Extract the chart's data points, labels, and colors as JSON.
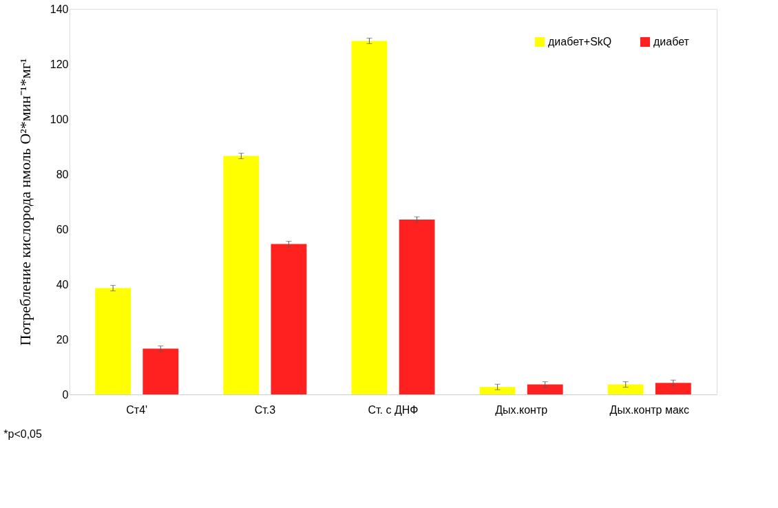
{
  "chart_data": {
    "type": "bar",
    "ylabel": "Потребление кислорода нмоль O²*мин⁻¹*мг¹",
    "categories": [
      "Ст4'",
      "Ст.3",
      "Ст. с ДНФ",
      "Дых.контр",
      "Дых.контр макс"
    ],
    "series": [
      {
        "name": "диабет+SkQ",
        "color": "#ffff00",
        "values": [
          38.6,
          86.6,
          128.4,
          2.7,
          3.6
        ],
        "errors": [
          1,
          1,
          1,
          1,
          1
        ]
      },
      {
        "name": "диабет",
        "color": "#ff2020",
        "values": [
          16.6,
          54.6,
          63.5,
          3.6,
          4.2
        ],
        "errors": [
          1,
          1,
          1,
          1,
          1
        ]
      }
    ],
    "ylim": [
      0,
      140
    ],
    "yticks": [
      0,
      20,
      40,
      60,
      80,
      100,
      120,
      140
    ],
    "grid": false,
    "legend": "top right",
    "annotations": [
      "*p<0,05"
    ]
  }
}
